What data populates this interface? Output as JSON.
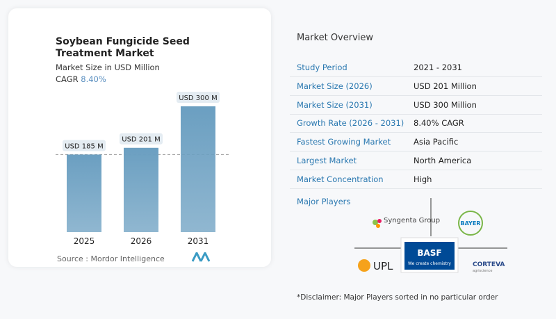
{
  "chart_data": {
    "type": "bar",
    "title": "Soybean Fungicide Seed Treatment Market",
    "subtitle": "Market Size in USD Million",
    "cagr_label": "CAGR",
    "cagr_value": "8.40%",
    "categories": [
      "2025",
      "2026",
      "2031"
    ],
    "values": [
      185,
      201,
      300
    ],
    "value_labels": [
      "USD 185 M",
      "USD 201 M",
      "USD 300 M"
    ],
    "color": "#6b9fc1",
    "source": "Source :  Mordor Intelligence"
  },
  "overview": {
    "title": "Market Overview",
    "rows": [
      [
        "Study Period",
        "2021 - 2031"
      ],
      [
        "Market Size (2026)",
        "USD 201 Million"
      ],
      [
        "Market Size (2031)",
        "USD 300 Million"
      ],
      [
        "Growth Rate (2026 - 2031)",
        "8.40% CAGR"
      ],
      [
        "Fastest Growing Market",
        "Asia Pacific"
      ],
      [
        "Largest Market",
        "North America"
      ],
      [
        "Market Concentration",
        "High"
      ]
    ]
  },
  "players": {
    "title": "Major Players",
    "logos": [
      "Syngenta Group",
      "BAYER",
      "UPL",
      "BASF",
      "We create chemistry",
      "CORTEVA",
      "agriscience"
    ]
  },
  "disclaimer": "*Disclaimer: Major Players sorted in no particular order"
}
